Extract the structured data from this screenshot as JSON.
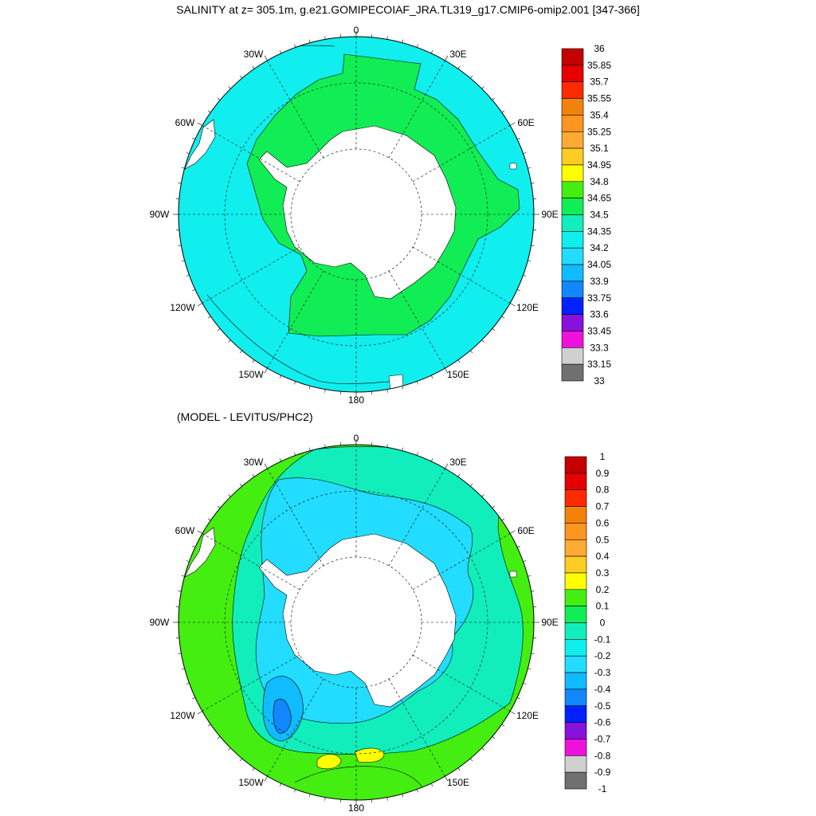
{
  "title": "SALINITY at z= 305.1m, g.e21.GOMIPECOIAF_JRA.TL319_g17.CMIP6-omip2.001 [347-366]",
  "subtitle": "(MODEL - LEVITUS/PHC2)",
  "longitude_labels": [
    "0",
    "30E",
    "60E",
    "90E",
    "120E",
    "150E",
    "180",
    "150W",
    "120W",
    "90W",
    "60W",
    "30W"
  ],
  "colorbar_top": {
    "labels": [
      "36",
      "35.85",
      "35.7",
      "35.55",
      "35.4",
      "35.25",
      "35.1",
      "34.95",
      "34.8",
      "34.65",
      "34.5",
      "34.35",
      "34.2",
      "34.05",
      "33.9",
      "33.75",
      "33.6",
      "33.45",
      "33.3",
      "33.15",
      "33"
    ],
    "colors": [
      "#c40000",
      "#e60000",
      "#ff2a00",
      "#f2820a",
      "#ff9520",
      "#ffaa33",
      "#ffcc22",
      "#ffff00",
      "#44ee11",
      "#11ee55",
      "#11eebb",
      "#11eeee",
      "#22ddff",
      "#11bbff",
      "#1188ff",
      "#0022ff",
      "#8811dd",
      "#ee11dd",
      "#d0d0d0",
      "#707070"
    ]
  },
  "colorbar_bottom": {
    "labels": [
      "1",
      "0.9",
      "0.8",
      "0.7",
      "0.6",
      "0.5",
      "0.4",
      "0.3",
      "0.2",
      "0.1",
      "0",
      "-0.1",
      "-0.2",
      "-0.3",
      "-0.4",
      "-0.5",
      "-0.6",
      "-0.7",
      "-0.8",
      "-0.9",
      "-1"
    ],
    "colors": [
      "#c40000",
      "#e60000",
      "#ff2a00",
      "#f2820a",
      "#ff9520",
      "#ffaa33",
      "#ffcc22",
      "#ffff00",
      "#44ee11",
      "#11ee55",
      "#11eebb",
      "#11eeee",
      "#22ddff",
      "#11bbff",
      "#1188ff",
      "#0022ff",
      "#8811dd",
      "#ee11dd",
      "#d0d0d0",
      "#707070"
    ]
  },
  "colors": {
    "top_outer": "#11eeee",
    "top_ring": "#11ee55",
    "bottom_outer": "#44ee11",
    "bottom_mid": "#11eebb",
    "bottom_inner": "#22ddff",
    "land": "#ffffff"
  }
}
